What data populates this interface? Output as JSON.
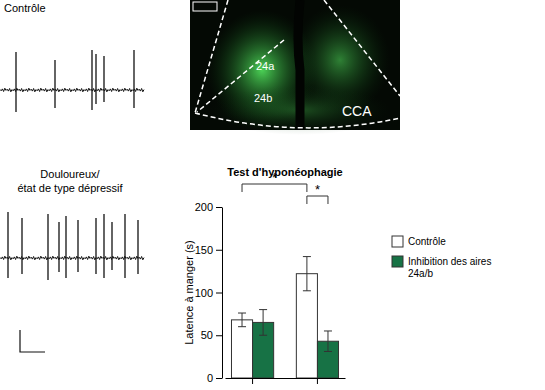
{
  "chart_data": {
    "type": "bar",
    "title": "Test d'hyponéophagie",
    "y_label": "Latence à manger (s)",
    "categories": [
      null,
      null
    ],
    "series": [
      {
        "name": "Contrôle",
        "color": "#ffffff",
        "values": [
          68,
          122
        ],
        "errors": [
          8,
          20
        ]
      },
      {
        "name": "Inhibition des aires 24a/b",
        "color": "#177245",
        "values": [
          65,
          43
        ],
        "errors": [
          15,
          12
        ]
      }
    ],
    "ylim": [
      0,
      200
    ],
    "yticks": [
      0,
      50,
      100,
      150,
      200
    ],
    "legend": "right",
    "annotations": [
      {
        "text": "*",
        "from": {
          "series": 0,
          "category": 0
        },
        "to": {
          "series": 0,
          "category": 1
        }
      },
      {
        "text": "*",
        "from": {
          "series": 0,
          "category": 1
        },
        "to": {
          "series": 1,
          "category": 1
        }
      }
    ]
  },
  "traces": {
    "labels": [
      "Contrôle",
      "Douloureux/",
      "état de type dépressif"
    ]
  },
  "image_panel": {
    "labels": [
      "24a",
      "24b",
      "CCA"
    ]
  }
}
